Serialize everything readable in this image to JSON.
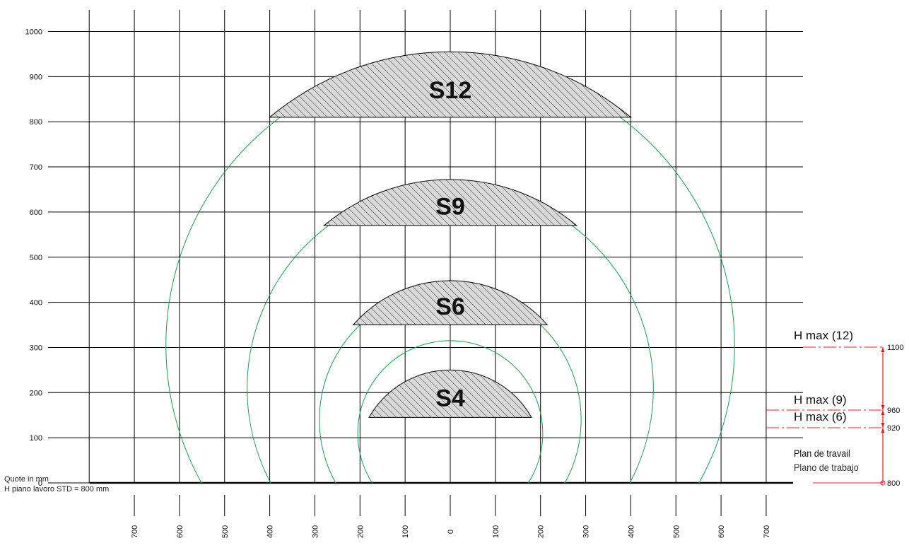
{
  "diagram": {
    "unit_note": "Quote in mm",
    "h_note": "H piano lavoro STD = 800 mm",
    "y_axis_ticks": [
      "0",
      "100",
      "200",
      "300",
      "400",
      "500",
      "600",
      "700",
      "800",
      "900",
      "1000"
    ],
    "x_axis_ticks": [
      "700",
      "600",
      "500",
      "400",
      "300",
      "200",
      "100",
      "0",
      "100",
      "200",
      "300",
      "400",
      "500",
      "600",
      "700"
    ],
    "zones": [
      {
        "label": "S12",
        "y_chord_mm": 810,
        "y_top_mm": 955,
        "half_width_mm": 400
      },
      {
        "label": "S9",
        "y_chord_mm": 570,
        "y_top_mm": 672,
        "half_width_mm": 280
      },
      {
        "label": "S6",
        "y_chord_mm": 350,
        "y_top_mm": 448,
        "half_width_mm": 215
      },
      {
        "label": "S4",
        "y_chord_mm": 145,
        "y_top_mm": 250,
        "half_width_mm": 180
      }
    ],
    "hmax": [
      {
        "label": "H max (12)",
        "value": "1100"
      },
      {
        "label": "H max (9)",
        "value": "960"
      },
      {
        "label": "H max (6)",
        "value": "920"
      }
    ],
    "work_plane": {
      "label_fr": "Plan de travail",
      "label_es": "Plano de trabajo",
      "value": "800"
    },
    "colors": {
      "grid": "#000000",
      "arc": "#1a9a4a",
      "hatch_fill": "#d9d9d9",
      "annotation": "#e0202a"
    }
  }
}
